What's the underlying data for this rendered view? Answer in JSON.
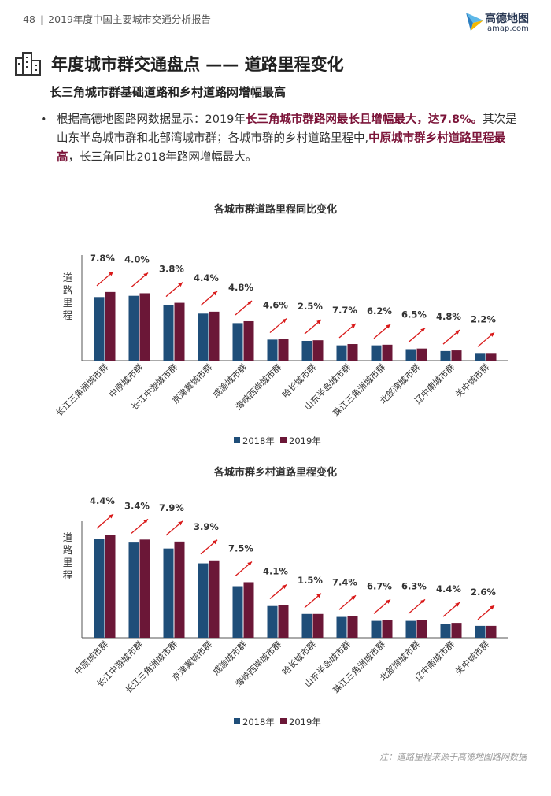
{
  "header": {
    "page_number": "48",
    "separator": "|",
    "report_title": "2019年度中国主要城市交通分析报告"
  },
  "logo": {
    "wordmark": "高德地图",
    "url": "amap.com"
  },
  "section": {
    "title": "年度城市群交通盘点 —— 道路里程变化",
    "subtitle": "长三角城市群基础道路和乡村道路网增幅最高"
  },
  "bullet": {
    "marker": "•",
    "p1": "根据高德地图路网数据显示：2019年",
    "h1": "长三角城市群路网最长且增幅最大，达7.8%。",
    "p2": "其次是山东半岛城市群和北部湾城市群；各城市群的乡村道路里程中,",
    "h2": "中原城市群乡村道路里程最高",
    "p3": "，长三角同比2018年路网增幅最大。"
  },
  "colors": {
    "series_2018": "#1f4e79",
    "series_2019": "#6b1737",
    "highlight": "#7b1338",
    "arrow": "#d91a1a",
    "axis": "#555555"
  },
  "icons": {
    "section_icon": "city-buildings-icon",
    "logo_icon": "amap-paper-plane-icon",
    "trend_icon": "up-arrow-icon"
  },
  "chart_data": [
    {
      "type": "bar",
      "title": "各城市群道路里程同比变化",
      "ylabel": "道路里程",
      "categories": [
        "长江三角洲城市群",
        "中原城市群",
        "长江中游城市群",
        "京津冀城市群",
        "成渝城市群",
        "海峡西岸城市群",
        "哈长城市群",
        "山东半岛城市群",
        "珠江三角洲城市群",
        "北部湾城市群",
        "辽中南城市群",
        "关中城市群"
      ],
      "series": [
        {
          "name": "2018年",
          "values": [
            100,
            102,
            88,
            74,
            59,
            33,
            31,
            24,
            24,
            18,
            15,
            12
          ]
        },
        {
          "name": "2019年",
          "values": [
            108,
            106,
            91,
            77,
            62,
            34,
            32,
            26,
            25,
            19,
            16,
            12
          ]
        }
      ],
      "change_labels": [
        "7.8%",
        "4.0%",
        "3.8%",
        "4.4%",
        "4.8%",
        "4.6%",
        "2.5%",
        "7.7%",
        "6.2%",
        "6.5%",
        "4.8%",
        "2.2%"
      ],
      "ylim": [
        0,
        145
      ],
      "legend": "bottom-center",
      "grid": false
    },
    {
      "type": "bar",
      "title": "各城市群乡村道路里程变化",
      "ylabel": "道路里程",
      "categories": [
        "中原城市群",
        "长江中游城市群",
        "长江三角洲城市群",
        "京津冀城市群",
        "成渝城市群",
        "海峡西岸城市群",
        "哈长城市群",
        "山东半岛城市群",
        "珠江三角洲城市群",
        "北部湾城市群",
        "辽中南城市群",
        "关中城市群"
      ],
      "series": [
        {
          "name": "2018年",
          "values": [
            100,
            96,
            90,
            75,
            52,
            32,
            24,
            21,
            17,
            17,
            14,
            12
          ]
        },
        {
          "name": "2019年",
          "values": [
            104,
            99,
            97,
            78,
            56,
            33,
            24,
            22,
            18,
            18,
            15,
            12
          ]
        }
      ],
      "change_labels": [
        "4.4%",
        "3.4%",
        "7.9%",
        "3.9%",
        "7.5%",
        "4.1%",
        "1.5%",
        "7.4%",
        "6.7%",
        "6.3%",
        "4.4%",
        "2.6%"
      ],
      "ylim": [
        0,
        135
      ],
      "legend": "bottom-center",
      "grid": false
    }
  ],
  "footnote": "注：道路里程来源于高德地图路网数据"
}
